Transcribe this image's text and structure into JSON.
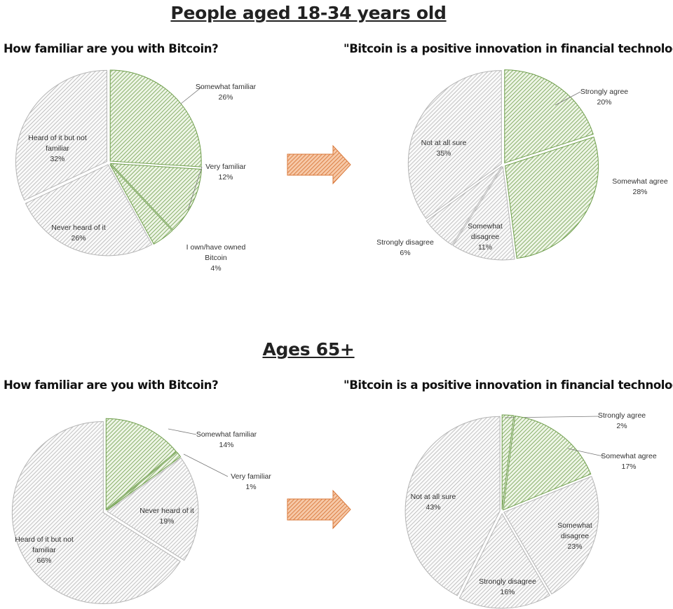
{
  "sections": [
    {
      "title": "People aged 18-34 years old"
    },
    {
      "title": "Ages 65+"
    }
  ],
  "colors": {
    "green_hatch": "#6f9e4c",
    "gray_hatch": "#a0a0a0",
    "arrow": "#d9783a"
  },
  "chart_data": [
    {
      "type": "pie",
      "title": "How familiar are you with Bitcoin?",
      "group": "People aged 18-34 years old",
      "slices": [
        {
          "label": "Somewhat familiar",
          "value": 26,
          "display": "26%",
          "color": "green"
        },
        {
          "label": "Very familiar",
          "value": 12,
          "display": "12%",
          "color": "green"
        },
        {
          "label": "I own/have owned Bitcoin",
          "value": 4,
          "display": "4%",
          "color": "green"
        },
        {
          "label": "Never heard of it",
          "value": 26,
          "display": "26%",
          "color": "gray"
        },
        {
          "label": "Heard of it but not familiar",
          "value": 32,
          "display": "32%",
          "color": "gray"
        }
      ]
    },
    {
      "type": "pie",
      "title": "\"Bitcoin is a positive innovation in financial technology\"",
      "group": "People aged 18-34 years old",
      "slices": [
        {
          "label": "Strongly agree",
          "value": 20,
          "display": "20%",
          "color": "green"
        },
        {
          "label": "Somewhat agree",
          "value": 28,
          "display": "28%",
          "color": "green"
        },
        {
          "label": "Somewhat disagree",
          "value": 11,
          "display": "11%",
          "color": "gray"
        },
        {
          "label": "Strongly disagree",
          "value": 6,
          "display": "6%",
          "color": "gray"
        },
        {
          "label": "Not at all sure",
          "value": 35,
          "display": "35%",
          "color": "gray"
        }
      ]
    },
    {
      "type": "pie",
      "title": "How familiar are you with Bitcoin?",
      "group": "Ages 65+",
      "slices": [
        {
          "label": "Somewhat familiar",
          "value": 14,
          "display": "14%",
          "color": "green"
        },
        {
          "label": "Very familiar",
          "value": 1,
          "display": "1%",
          "color": "green"
        },
        {
          "label": "Never heard of it",
          "value": 19,
          "display": "19%",
          "color": "gray"
        },
        {
          "label": "Heard of it but not familiar",
          "value": 66,
          "display": "66%",
          "color": "gray"
        }
      ]
    },
    {
      "type": "pie",
      "title": "\"Bitcoin is a positive innovation in financial technology\"",
      "group": "Ages 65+",
      "slices": [
        {
          "label": "Strongly agree",
          "value": 2,
          "display": "2%",
          "color": "green"
        },
        {
          "label": "Somewhat agree",
          "value": 17,
          "display": "17%",
          "color": "green"
        },
        {
          "label": "Somewhat disagree",
          "value": 23,
          "display": "23%",
          "color": "gray"
        },
        {
          "label": "Strongly disagree",
          "value": 16,
          "display": "16%",
          "color": "gray"
        },
        {
          "label": "Not at all sure",
          "value": 43,
          "display": "43%",
          "color": "gray"
        }
      ]
    }
  ]
}
